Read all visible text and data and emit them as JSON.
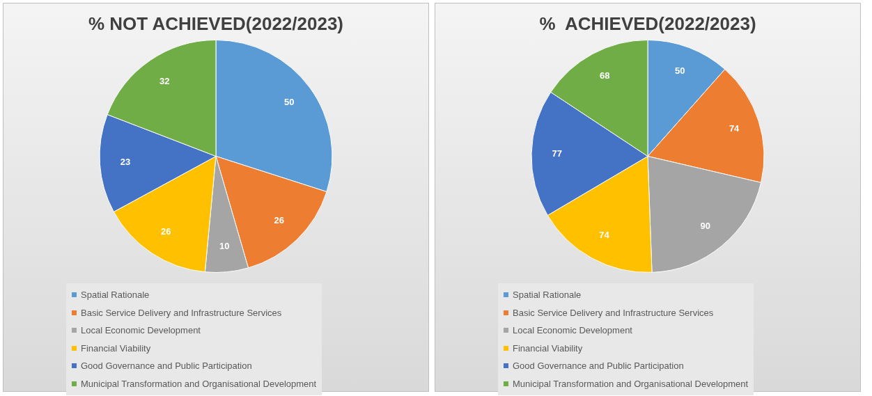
{
  "chart_data": [
    {
      "type": "pie",
      "title": "% NOT ACHIEVED(2022/2023)",
      "categories": [
        "Spatial Rationale",
        "Basic Service Delivery and Infrastructure Services",
        "Local Economic Development",
        "Financial Viability",
        "Good Governance and Public Participation",
        "Municipal Transformation and Organisational Development"
      ],
      "values": [
        50,
        26,
        10,
        26,
        23,
        32
      ],
      "colors": [
        "#5b9bd5",
        "#ed7d31",
        "#a5a5a5",
        "#ffc000",
        "#4472c4",
        "#70ad47"
      ],
      "data_labels": true,
      "legend": "bottom"
    },
    {
      "type": "pie",
      "title": "%  ACHIEVED(2022/2023)",
      "categories": [
        "Spatial Rationale",
        "Basic Service Delivery and Infrastructure Services",
        "Local Economic Development",
        "Financial Viability",
        "Good Governance and Public Participation",
        "Municipal Transformation and Organisational Development"
      ],
      "values": [
        50,
        74,
        90,
        74,
        77,
        68
      ],
      "colors": [
        "#5b9bd5",
        "#ed7d31",
        "#a5a5a5",
        "#ffc000",
        "#4472c4",
        "#70ad47"
      ],
      "data_labels": true,
      "legend": "bottom"
    }
  ]
}
